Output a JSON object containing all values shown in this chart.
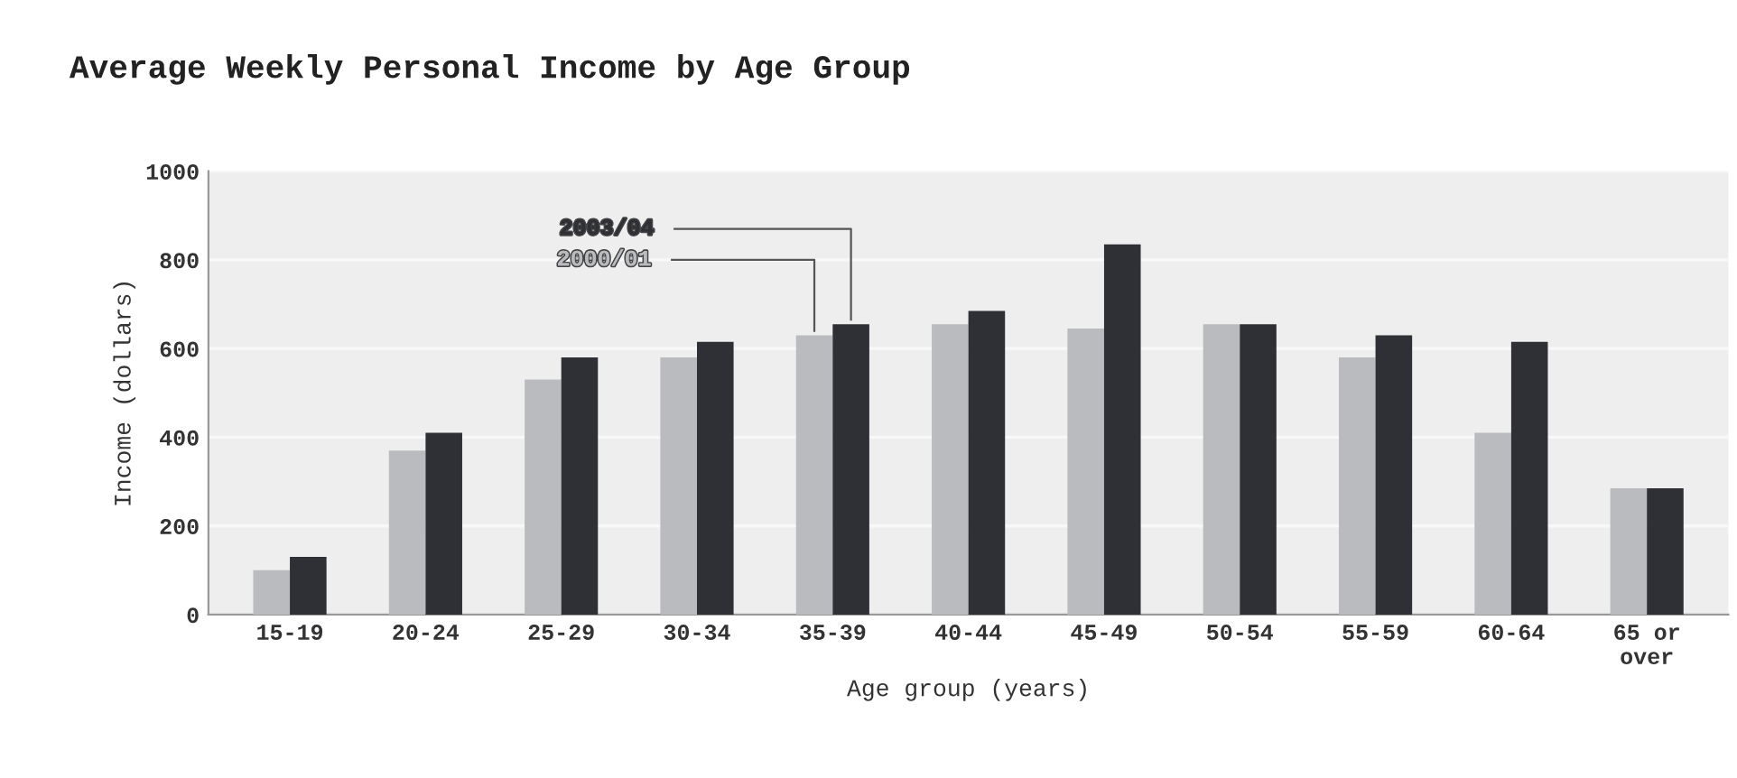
{
  "chart_data": {
    "type": "bar",
    "title": "Average Weekly Personal Income by Age Group",
    "xlabel": "Age group (years)",
    "ylabel": "Income (dollars)",
    "categories": [
      "15-19",
      "20-24",
      "25-29",
      "30-34",
      "35-39",
      "40-44",
      "45-49",
      "50-54",
      "55-59",
      "60-64",
      "65 or\nover"
    ],
    "series": [
      {
        "name": "2000/01",
        "color": "#b9bbbe",
        "values": [
          100,
          370,
          530,
          580,
          630,
          655,
          645,
          655,
          580,
          410,
          285
        ]
      },
      {
        "name": "2003/04",
        "color": "#2e3035",
        "values": [
          130,
          410,
          580,
          615,
          655,
          685,
          835,
          655,
          630,
          615,
          285
        ]
      }
    ],
    "ylim": [
      0,
      1000
    ],
    "yticks": [
      0,
      200,
      400,
      600,
      800,
      1000
    ],
    "grid": "y",
    "legend": false
  }
}
